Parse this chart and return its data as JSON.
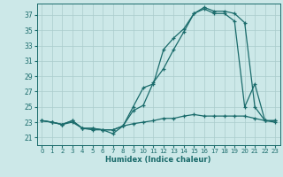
{
  "xlabel": "Humidex (Indice chaleur)",
  "background_color": "#cce8e8",
  "line_color": "#1a6b6b",
  "grid_color": "#aacccc",
  "xlim": [
    -0.5,
    23.5
  ],
  "ylim": [
    20.0,
    38.5
  ],
  "xticks": [
    0,
    1,
    2,
    3,
    4,
    5,
    6,
    7,
    8,
    9,
    10,
    11,
    12,
    13,
    14,
    15,
    16,
    17,
    18,
    19,
    20,
    21,
    22,
    23
  ],
  "yticks": [
    21,
    23,
    25,
    27,
    29,
    31,
    33,
    35,
    37
  ],
  "series1_x": [
    0,
    1,
    2,
    3,
    4,
    5,
    6,
    7,
    8,
    9,
    10,
    11,
    12,
    13,
    14,
    15,
    16,
    17,
    18,
    19,
    20,
    21,
    22,
    23
  ],
  "series1_y": [
    23.2,
    23.0,
    22.7,
    23.2,
    22.2,
    22.2,
    22.0,
    21.5,
    22.5,
    25.0,
    27.5,
    28.0,
    32.5,
    34.0,
    35.2,
    37.2,
    37.8,
    37.2,
    37.2,
    36.2,
    25.0,
    28.0,
    23.2,
    23.2
  ],
  "series2_x": [
    0,
    1,
    2,
    3,
    4,
    5,
    6,
    7,
    8,
    9,
    10,
    11,
    12,
    13,
    14,
    15,
    16,
    17,
    18,
    19,
    20,
    21,
    22,
    23
  ],
  "series2_y": [
    23.2,
    23.0,
    22.7,
    23.2,
    22.2,
    22.0,
    22.0,
    22.0,
    22.5,
    24.5,
    25.2,
    28.2,
    30.0,
    32.5,
    34.8,
    37.2,
    38.0,
    37.5,
    37.5,
    37.2,
    36.0,
    25.0,
    23.2,
    23.2
  ],
  "series3_x": [
    0,
    1,
    2,
    3,
    4,
    5,
    6,
    7,
    8,
    9,
    10,
    11,
    12,
    13,
    14,
    15,
    16,
    17,
    18,
    19,
    20,
    21,
    22,
    23
  ],
  "series3_y": [
    23.2,
    23.0,
    22.7,
    23.0,
    22.2,
    22.2,
    22.0,
    22.0,
    22.5,
    22.8,
    23.0,
    23.2,
    23.5,
    23.5,
    23.8,
    24.0,
    23.8,
    23.8,
    23.8,
    23.8,
    23.8,
    23.5,
    23.2,
    23.0
  ]
}
